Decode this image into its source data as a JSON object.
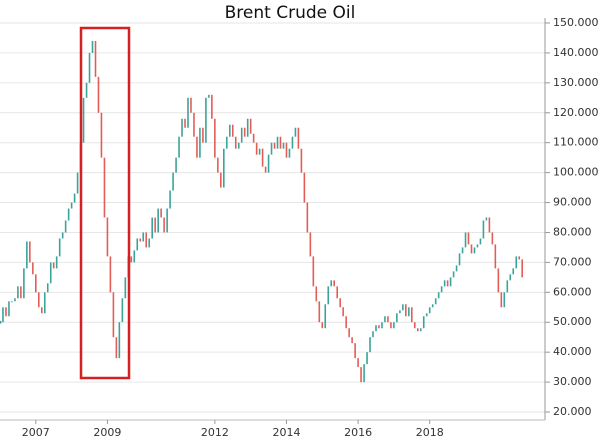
{
  "chart_data": {
    "type": "updown",
    "title": "Brent Crude Oil",
    "x": [
      2006,
      2006.083,
      2006.167,
      2006.25,
      2006.333,
      2006.417,
      2006.5,
      2006.583,
      2006.667,
      2006.75,
      2006.833,
      2006.917,
      2007,
      2007.083,
      2007.167,
      2007.25,
      2007.333,
      2007.417,
      2007.5,
      2007.583,
      2007.667,
      2007.75,
      2007.833,
      2007.917,
      2008,
      2008.083,
      2008.167,
      2008.25,
      2008.333,
      2008.417,
      2008.5,
      2008.583,
      2008.667,
      2008.75,
      2008.833,
      2008.917,
      2009,
      2009.083,
      2009.167,
      2009.25,
      2009.333,
      2009.417,
      2009.5,
      2009.583,
      2009.667,
      2009.75,
      2009.833,
      2009.917,
      2010,
      2010.083,
      2010.167,
      2010.25,
      2010.333,
      2010.417,
      2010.5,
      2010.583,
      2010.667,
      2010.75,
      2010.833,
      2010.917,
      2011,
      2011.083,
      2011.167,
      2011.25,
      2011.333,
      2011.417,
      2011.5,
      2011.583,
      2011.667,
      2011.75,
      2011.833,
      2011.917,
      2012,
      2012.083,
      2012.167,
      2012.25,
      2012.333,
      2012.417,
      2012.5,
      2012.583,
      2012.667,
      2012.75,
      2012.833,
      2012.917,
      2013,
      2013.083,
      2013.167,
      2013.25,
      2013.333,
      2013.417,
      2013.5,
      2013.583,
      2013.667,
      2013.75,
      2013.833,
      2013.917,
      2014,
      2014.083,
      2014.167,
      2014.25,
      2014.333,
      2014.417,
      2014.5,
      2014.583,
      2014.667,
      2014.75,
      2014.833,
      2014.917,
      2015,
      2015.083,
      2015.167,
      2015.25,
      2015.333,
      2015.417,
      2015.5,
      2015.583,
      2015.667,
      2015.75,
      2015.833,
      2015.917,
      2016,
      2016.083,
      2016.167,
      2016.25,
      2016.333,
      2016.417,
      2016.5,
      2016.583,
      2016.667,
      2016.75,
      2016.833,
      2016.917,
      2017,
      2017.083,
      2017.167,
      2017.25,
      2017.333,
      2017.417,
      2017.5,
      2017.583,
      2017.667,
      2017.75,
      2017.833,
      2017.917,
      2018,
      2018.083,
      2018.167,
      2018.25,
      2018.333,
      2018.417,
      2018.5,
      2018.583,
      2018.667,
      2018.75,
      2018.833,
      2018.917,
      2019,
      2019.083,
      2019.167,
      2019.25,
      2019.333,
      2019.417,
      2019.5,
      2019.583,
      2019.667,
      2019.75,
      2019.833,
      2019.917,
      2020,
      2020.083,
      2020.167,
      2020.25,
      2020.333,
      2020.417,
      2020.5,
      2020.583
    ],
    "series": [
      {
        "values": [
          50,
          55,
          52,
          57,
          57,
          58,
          62,
          58,
          68,
          77,
          70,
          66,
          60,
          55,
          53,
          60,
          63,
          70,
          68,
          72,
          78,
          80,
          84,
          88,
          90,
          93,
          100,
          110,
          125,
          130,
          140,
          144,
          132,
          120,
          105,
          85,
          72,
          60,
          45,
          38,
          50,
          58,
          65,
          72,
          70,
          74,
          78,
          77,
          80,
          75,
          78,
          85,
          80,
          88,
          85,
          80,
          88,
          94,
          100,
          105,
          112,
          118,
          115,
          125,
          120,
          112,
          105,
          115,
          110,
          125,
          126,
          118,
          105,
          100,
          95,
          108,
          112,
          116,
          112,
          108,
          110,
          115,
          112,
          118,
          113,
          110,
          106,
          108,
          102,
          100,
          106,
          110,
          108,
          112,
          108,
          110,
          105,
          108,
          112,
          115,
          108,
          100,
          90,
          80,
          72,
          62,
          57,
          50,
          48,
          56,
          62,
          64,
          62,
          58,
          55,
          52,
          48,
          45,
          43,
          38,
          35,
          30,
          36,
          40,
          45,
          47,
          49,
          48,
          50,
          52,
          50,
          48,
          50,
          53,
          54,
          56,
          52,
          55,
          50,
          48,
          47,
          48,
          52,
          53,
          55,
          56,
          58,
          60,
          62,
          64,
          62,
          65,
          67,
          69,
          73,
          75,
          80,
          76,
          73,
          75,
          76,
          78,
          84,
          85,
          80,
          76,
          68,
          60,
          55,
          60,
          64,
          66,
          68,
          72,
          71,
          65
        ]
      }
    ],
    "up_color": "#3aa39a",
    "down_color": "#e35d57",
    "xlim": [
      2006,
      2021.08
    ],
    "xticks": [
      2007,
      2009,
      2012,
      2014,
      2016,
      2018
    ],
    "ylim": [
      18,
      151
    ],
    "yticks": [
      {
        "value": 20,
        "label": "20.000"
      },
      {
        "value": 30,
        "label": "30.000"
      },
      {
        "value": 40,
        "label": "40.000"
      },
      {
        "value": 50,
        "label": "50.000"
      },
      {
        "value": 60,
        "label": "60.000"
      },
      {
        "value": 70,
        "label": "70.000"
      },
      {
        "value": 80,
        "label": "80.000"
      },
      {
        "value": 90,
        "label": "90.000"
      },
      {
        "value": 100,
        "label": "100.000"
      },
      {
        "value": 110,
        "label": "110.000"
      },
      {
        "value": 120,
        "label": "120.000"
      },
      {
        "value": 130,
        "label": "130.000"
      },
      {
        "value": 140,
        "label": "140.000"
      },
      {
        "value": 150,
        "label": "150.000"
      }
    ],
    "grid": true
  }
}
